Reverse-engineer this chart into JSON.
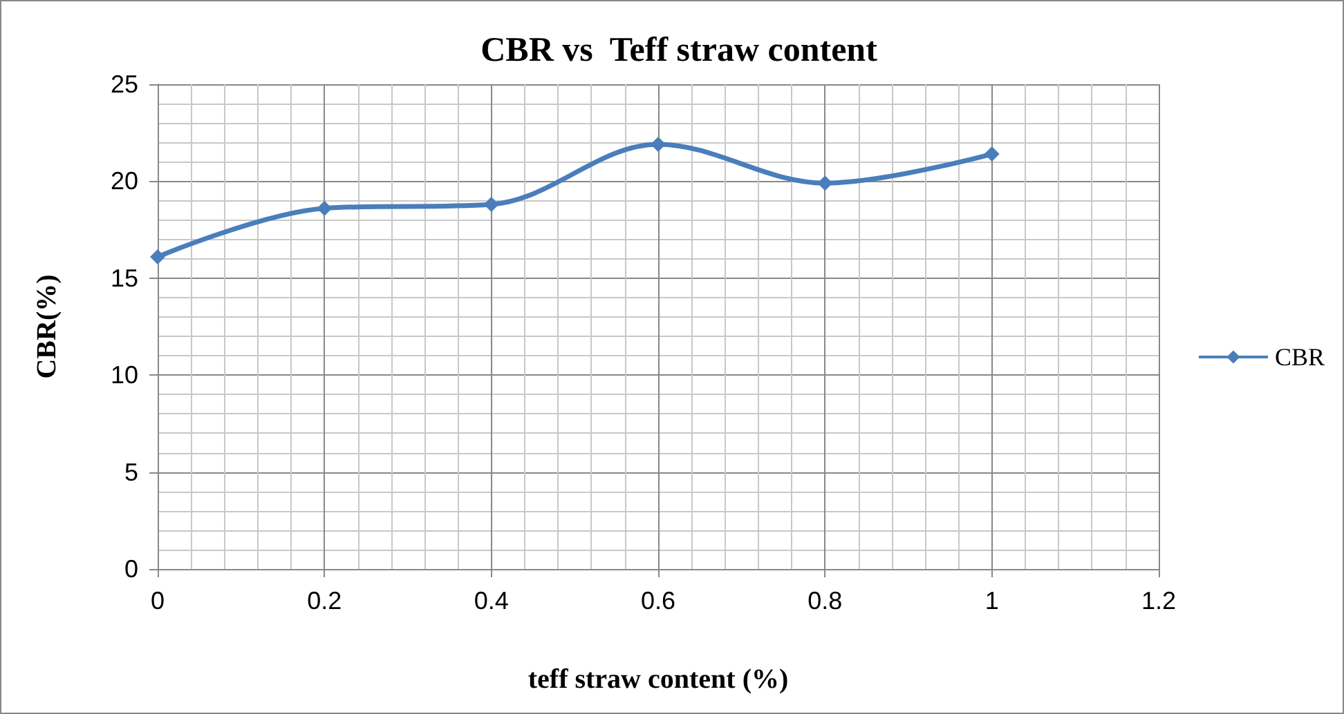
{
  "chart_data": {
    "type": "line",
    "title": "CBR vs  Teff straw content",
    "xlabel": "teff straw content (%)",
    "ylabel": "CBR(%)",
    "x": [
      0,
      0.2,
      0.4,
      0.6,
      0.8,
      1
    ],
    "series": [
      {
        "name": "CBR",
        "color": "#4a7ebb",
        "values": [
          16.1,
          18.6,
          18.8,
          21.9,
          19.9,
          21.4
        ]
      }
    ],
    "xlim": [
      0,
      1.2
    ],
    "xticks": [
      0,
      0.2,
      0.4,
      0.6,
      0.8,
      1,
      1.2
    ],
    "ylim": [
      0,
      25
    ],
    "yticks": [
      0,
      5,
      10,
      15,
      20,
      25
    ],
    "grid": true,
    "legend": "right",
    "marker": "diamond",
    "line_style": "solid"
  }
}
